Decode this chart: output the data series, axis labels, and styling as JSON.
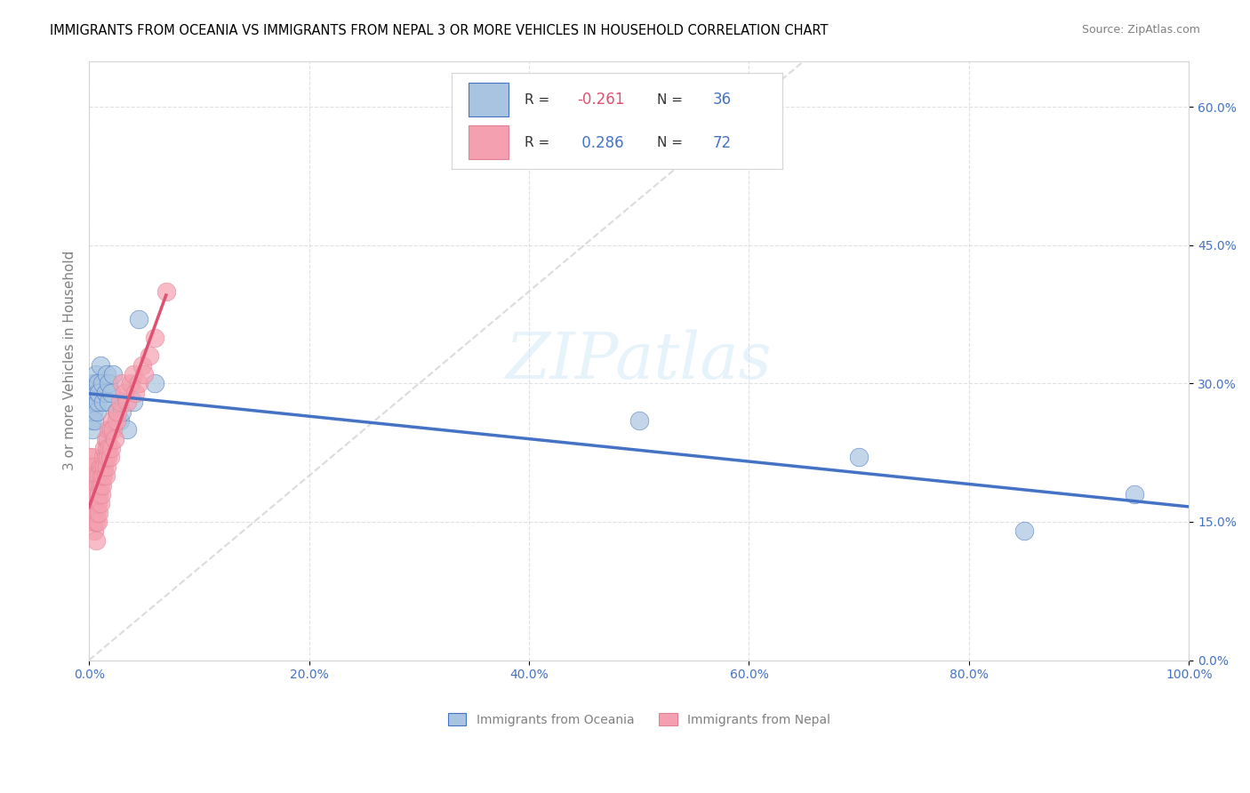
{
  "title": "IMMIGRANTS FROM OCEANIA VS IMMIGRANTS FROM NEPAL 3 OR MORE VEHICLES IN HOUSEHOLD CORRELATION CHART",
  "source": "Source: ZipAtlas.com",
  "xlabel": "",
  "ylabel": "3 or more Vehicles in Household",
  "xlim": [
    0.0,
    1.0
  ],
  "ylim": [
    0.0,
    0.65
  ],
  "xticks": [
    0.0,
    0.2,
    0.4,
    0.6,
    0.8,
    1.0
  ],
  "xticklabels": [
    "0.0%",
    "20.0%",
    "40.0%",
    "60.0%",
    "80.0%",
    "100.0%"
  ],
  "yticks": [
    0.0,
    0.15,
    0.3,
    0.45,
    0.6
  ],
  "yticklabels": [
    "0.0%",
    "15.0%",
    "30.0%",
    "45.0%",
    "60.0%"
  ],
  "legend_oceania": "Immigrants from Oceania",
  "legend_nepal": "Immigrants from Nepal",
  "r_oceania": -0.261,
  "n_oceania": 36,
  "r_nepal": 0.286,
  "n_nepal": 72,
  "color_oceania": "#a8c4e0",
  "color_nepal": "#f4a0b0",
  "trendline_oceania": "#4472c4",
  "trendline_nepal": "#e05070",
  "watermark": "ZIPatlas",
  "oceania_x": [
    0.001,
    0.002,
    0.002,
    0.003,
    0.003,
    0.004,
    0.004,
    0.005,
    0.005,
    0.006,
    0.006,
    0.007,
    0.007,
    0.008,
    0.008,
    0.009,
    0.01,
    0.012,
    0.013,
    0.015,
    0.016,
    0.018,
    0.018,
    0.02,
    0.022,
    0.025,
    0.028,
    0.03,
    0.035,
    0.04,
    0.045,
    0.06,
    0.5,
    0.7,
    0.85,
    0.95
  ],
  "oceania_y": [
    0.27,
    0.26,
    0.28,
    0.25,
    0.29,
    0.3,
    0.27,
    0.28,
    0.26,
    0.3,
    0.31,
    0.29,
    0.27,
    0.28,
    0.3,
    0.29,
    0.32,
    0.3,
    0.28,
    0.29,
    0.31,
    0.3,
    0.28,
    0.29,
    0.31,
    0.27,
    0.26,
    0.27,
    0.25,
    0.28,
    0.37,
    0.3,
    0.26,
    0.22,
    0.14,
    0.18
  ],
  "nepal_x": [
    0.001,
    0.001,
    0.001,
    0.002,
    0.002,
    0.002,
    0.002,
    0.003,
    0.003,
    0.003,
    0.003,
    0.004,
    0.004,
    0.004,
    0.004,
    0.005,
    0.005,
    0.005,
    0.005,
    0.006,
    0.006,
    0.006,
    0.007,
    0.007,
    0.007,
    0.008,
    0.008,
    0.008,
    0.009,
    0.009,
    0.009,
    0.01,
    0.01,
    0.01,
    0.011,
    0.011,
    0.012,
    0.012,
    0.013,
    0.013,
    0.014,
    0.014,
    0.015,
    0.015,
    0.015,
    0.016,
    0.016,
    0.017,
    0.017,
    0.018,
    0.018,
    0.019,
    0.02,
    0.02,
    0.021,
    0.022,
    0.023,
    0.025,
    0.026,
    0.028,
    0.03,
    0.032,
    0.035,
    0.038,
    0.04,
    0.042,
    0.045,
    0.048,
    0.05,
    0.055,
    0.06,
    0.07
  ],
  "nepal_y": [
    0.18,
    0.2,
    0.22,
    0.15,
    0.17,
    0.19,
    0.21,
    0.16,
    0.18,
    0.2,
    0.22,
    0.15,
    0.17,
    0.19,
    0.21,
    0.14,
    0.16,
    0.18,
    0.2,
    0.13,
    0.15,
    0.17,
    0.16,
    0.18,
    0.2,
    0.15,
    0.17,
    0.19,
    0.16,
    0.18,
    0.2,
    0.17,
    0.19,
    0.21,
    0.18,
    0.2,
    0.19,
    0.21,
    0.2,
    0.22,
    0.21,
    0.23,
    0.2,
    0.22,
    0.24,
    0.21,
    0.23,
    0.22,
    0.24,
    0.23,
    0.25,
    0.22,
    0.23,
    0.25,
    0.26,
    0.25,
    0.24,
    0.26,
    0.27,
    0.28,
    0.3,
    0.29,
    0.28,
    0.3,
    0.31,
    0.29,
    0.3,
    0.32,
    0.31,
    0.33,
    0.35,
    0.4
  ]
}
